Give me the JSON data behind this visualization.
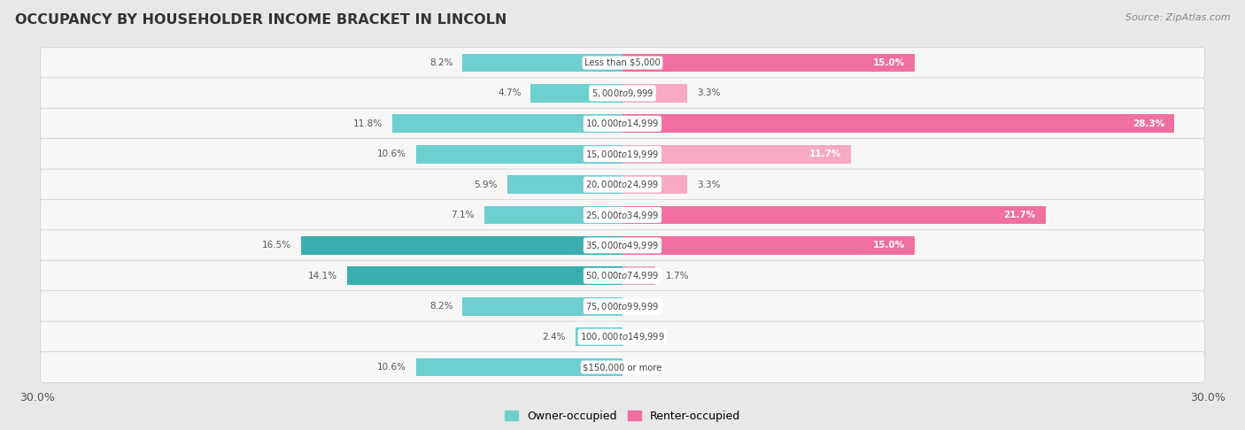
{
  "title": "OCCUPANCY BY HOUSEHOLDER INCOME BRACKET IN LINCOLN",
  "source": "Source: ZipAtlas.com",
  "categories": [
    "Less than $5,000",
    "$5,000 to $9,999",
    "$10,000 to $14,999",
    "$15,000 to $19,999",
    "$20,000 to $24,999",
    "$25,000 to $34,999",
    "$35,000 to $49,999",
    "$50,000 to $74,999",
    "$75,000 to $99,999",
    "$100,000 to $149,999",
    "$150,000 or more"
  ],
  "owner_values": [
    8.2,
    4.7,
    11.8,
    10.6,
    5.9,
    7.1,
    16.5,
    14.1,
    8.2,
    2.4,
    10.6
  ],
  "renter_values": [
    15.0,
    3.3,
    28.3,
    11.7,
    3.3,
    21.7,
    15.0,
    1.7,
    0.0,
    0.0,
    0.0
  ],
  "owner_color_light": "#6dcfcf",
  "owner_color_dark": "#3aafb0",
  "renter_color_light": "#f7a8c4",
  "renter_color_dark": "#f06fa0",
  "background_color": "#e8e8e8",
  "bar_background": "#f5f5f5",
  "row_bg_color": "#ebebeb",
  "xlim": 30.0,
  "legend_owner": "Owner-occupied",
  "legend_renter": "Renter-occupied"
}
